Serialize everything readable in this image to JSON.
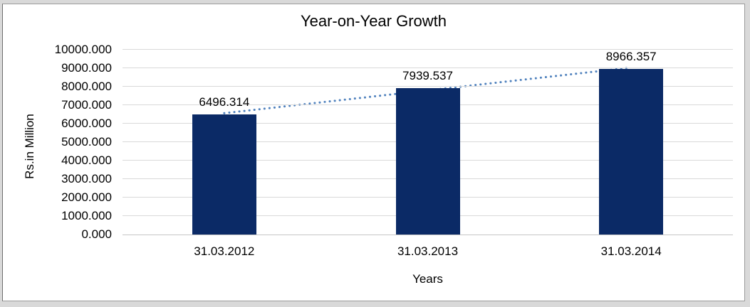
{
  "page": {
    "background_color": "#d9d9d9",
    "chart_background": "#ffffff",
    "frame_border_color": "#9b9b9b"
  },
  "chart_data": {
    "type": "bar",
    "title": "Year-on-Year Growth",
    "categories": [
      "31.03.2012",
      "31.03.2013",
      "31.03.2014"
    ],
    "values": [
      6496.314,
      7939.537,
      8966.357
    ],
    "data_labels": [
      "6496.314",
      "7939.537",
      "8966.357"
    ],
    "xlabel": "Years",
    "ylabel": "Rs.in Million",
    "ylim": [
      0,
      10000
    ],
    "ytick_labels": [
      "0.000",
      "1000.000",
      "2000.000",
      "3000.000",
      "4000.000",
      "5000.000",
      "6000.000",
      "7000.000",
      "8000.000",
      "9000.000",
      "10000.000"
    ],
    "grid": true,
    "legend": "none",
    "trendline": {
      "type": "linear",
      "style": "dotted"
    },
    "colors": {
      "bar": "#0b2a66",
      "trendline": "#4f81bd",
      "gridline": "#d9d9d9",
      "zero_line": "#c6c6c6",
      "text": "#000000"
    }
  }
}
